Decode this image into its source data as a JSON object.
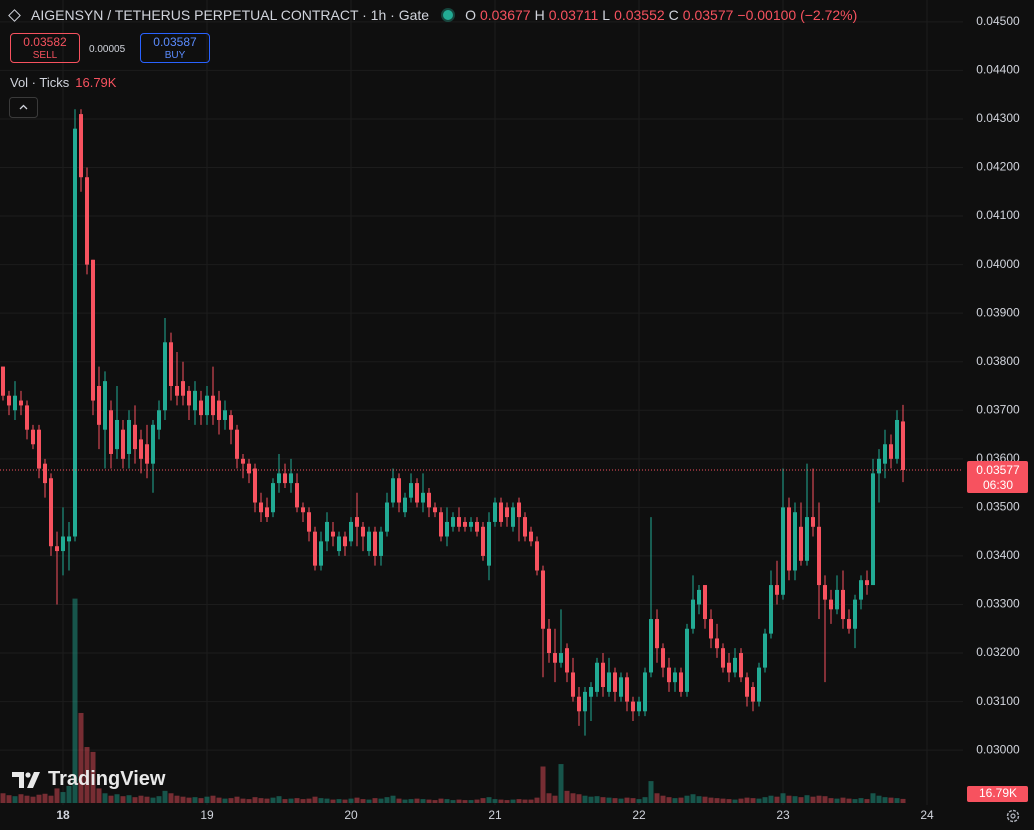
{
  "chart_data": {
    "type": "candlestick",
    "title": "AIGENSYN / TETHERUS PERPETUAL CONTRACT · 1h · Gate",
    "labels": {
      "open": "O",
      "high": "H",
      "low": "L",
      "close": "C"
    },
    "change": "−0.00100 (−2.72%)",
    "countdown": "06:30",
    "up_color": "#22ab94",
    "down_color": "#f7525f",
    "grid": true,
    "categories": [
      null,
      null,
      null,
      null,
      null,
      null,
      null,
      null,
      null,
      null,
      "18",
      null,
      null,
      null,
      null,
      null,
      null,
      null,
      null,
      null,
      null,
      null,
      null,
      null,
      null,
      null,
      null,
      null,
      null,
      null,
      null,
      null,
      null,
      null,
      "19",
      null,
      null,
      null,
      null,
      null,
      null,
      null,
      null,
      null,
      null,
      null,
      null,
      null,
      null,
      null,
      null,
      null,
      null,
      null,
      null,
      null,
      null,
      null,
      "20",
      null,
      null,
      null,
      null,
      null,
      null,
      null,
      null,
      null,
      null,
      null,
      null,
      null,
      null,
      null,
      null,
      null,
      null,
      null,
      null,
      null,
      null,
      null,
      "21",
      null,
      null,
      null,
      null,
      null,
      null,
      null,
      null,
      null,
      null,
      null,
      null,
      null,
      null,
      null,
      null,
      null,
      null,
      null,
      null,
      null,
      null,
      null,
      "22",
      null,
      null,
      null,
      null,
      null,
      null,
      null,
      null,
      null,
      null,
      null,
      null,
      null,
      null,
      null,
      null,
      null,
      null,
      null,
      null,
      null,
      null,
      null,
      "23",
      null,
      null,
      null,
      null,
      null,
      null,
      null,
      null,
      null,
      null,
      null,
      null,
      null,
      null,
      null,
      null,
      null,
      null,
      null,
      null,
      null,
      null,
      null,
      "24"
    ],
    "open": [
      0.0379,
      0.0373,
      0.037,
      0.0372,
      0.0371,
      0.0366,
      0.0366,
      0.0359,
      0.0356,
      0.0342,
      0.0341,
      0.0343,
      0.0344,
      0.0431,
      0.0418,
      0.0401,
      0.0375,
      0.0366,
      0.037,
      0.0362,
      0.0366,
      0.0361,
      0.0367,
      0.0364,
      0.0363,
      0.0359,
      0.0366,
      0.037,
      0.0384,
      0.0375,
      0.0376,
      0.0374,
      0.037,
      0.0372,
      0.0369,
      0.0373,
      0.0372,
      0.0368,
      0.0369,
      0.0366,
      0.036,
      0.0359,
      0.0358,
      0.0351,
      0.035,
      0.0349,
      0.0355,
      0.0357,
      0.0355,
      0.0355,
      0.035,
      0.0349,
      0.0345,
      0.0338,
      0.0343,
      0.0345,
      0.0341,
      0.0344,
      0.0343,
      0.0348,
      0.0346,
      0.0341,
      0.0345,
      0.034,
      0.0345,
      0.0351,
      0.0356,
      0.0349,
      0.0352,
      0.0355,
      0.0351,
      0.0353,
      0.035,
      0.0349,
      0.0344,
      0.0346,
      0.0348,
      0.0347,
      0.0346,
      0.0347,
      0.0346,
      0.0338,
      0.0347,
      0.0351,
      0.035,
      0.0346,
      0.0351,
      0.0348,
      0.0345,
      0.0343,
      0.0337,
      0.0325,
      0.032,
      0.0318,
      0.0321,
      0.0316,
      0.0311,
      0.0308,
      0.0311,
      0.0312,
      0.0318,
      0.0312,
      0.0316,
      0.0311,
      0.0315,
      0.031,
      0.0308,
      0.0308,
      0.0316,
      0.0327,
      0.0321,
      0.0317,
      0.0314,
      0.0316,
      0.0312,
      0.0325,
      0.033,
      0.0334,
      0.0327,
      0.0323,
      0.0321,
      0.0318,
      0.0316,
      0.032,
      0.0315,
      0.0313,
      0.031,
      0.0317,
      0.0324,
      0.0334,
      0.0332,
      0.035,
      0.0337,
      0.0346,
      0.0339,
      0.0348,
      0.0346,
      0.0334,
      0.0331,
      0.0329,
      0.0333,
      0.0327,
      0.0325,
      0.0331,
      0.0335,
      0.0334,
      0.0357,
      0.0359,
      0.0363,
      0.036,
      0.03677,
      null,
      null,
      null,
      null
    ],
    "high": [
      0.0379,
      0.0374,
      0.0376,
      0.0374,
      0.0372,
      0.0367,
      0.0367,
      0.036,
      0.0357,
      0.0345,
      0.035,
      0.0347,
      0.0432,
      0.0432,
      0.042,
      0.0401,
      0.0379,
      0.0378,
      0.0372,
      0.0375,
      0.0368,
      0.037,
      0.0371,
      0.0366,
      0.0367,
      0.0368,
      0.0372,
      0.0389,
      0.0386,
      0.0382,
      0.038,
      0.0375,
      0.0376,
      0.0374,
      0.0375,
      0.0379,
      0.0374,
      0.0372,
      0.037,
      0.0367,
      0.0361,
      0.036,
      0.0359,
      0.0353,
      0.0352,
      0.0356,
      0.0361,
      0.0359,
      0.036,
      0.0357,
      0.0351,
      0.035,
      0.0346,
      0.0345,
      0.0349,
      0.0347,
      0.0345,
      0.0345,
      0.0348,
      0.0353,
      0.0347,
      0.0346,
      0.0346,
      0.0346,
      0.0353,
      0.0358,
      0.0357,
      0.0353,
      0.0357,
      0.0356,
      0.0357,
      0.0354,
      0.0351,
      0.035,
      0.035,
      0.0349,
      0.035,
      0.0348,
      0.0348,
      0.0348,
      0.0347,
      0.0349,
      0.0352,
      0.0352,
      0.0351,
      0.0351,
      0.0352,
      0.0349,
      0.0346,
      0.0344,
      0.0338,
      0.0327,
      0.0325,
      0.0329,
      0.0322,
      0.0319,
      0.0313,
      0.0313,
      0.0314,
      0.0319,
      0.032,
      0.0319,
      0.0317,
      0.0316,
      0.0316,
      0.0311,
      0.0311,
      0.0317,
      0.0348,
      0.0329,
      0.0322,
      0.0319,
      0.0317,
      0.0317,
      0.0326,
      0.0336,
      0.0334,
      0.0334,
      0.0329,
      0.0326,
      0.0322,
      0.032,
      0.0321,
      0.0321,
      0.0316,
      0.0314,
      0.0318,
      0.0325,
      0.0337,
      0.0339,
      0.0358,
      0.0352,
      0.0351,
      0.0351,
      0.0359,
      0.0358,
      0.0351,
      0.0336,
      0.0333,
      0.0336,
      0.0337,
      0.0329,
      0.0332,
      0.0336,
      0.0337,
      0.036,
      0.0362,
      0.0366,
      0.0365,
      0.037,
      0.03711,
      null,
      null,
      null,
      null
    ],
    "low": [
      0.0372,
      0.0369,
      0.0368,
      0.0369,
      0.0364,
      0.0362,
      0.0356,
      0.0352,
      0.034,
      0.033,
      0.0336,
      0.0337,
      0.0343,
      0.0415,
      0.0398,
      0.0369,
      0.0362,
      0.0358,
      0.0358,
      0.036,
      0.0358,
      0.0358,
      0.0359,
      0.0357,
      0.0356,
      0.0353,
      0.0364,
      0.0368,
      0.0372,
      0.0371,
      0.0371,
      0.0368,
      0.0367,
      0.0367,
      0.0367,
      0.0367,
      0.0365,
      0.0366,
      0.0363,
      0.0358,
      0.0356,
      0.0355,
      0.0349,
      0.0347,
      0.0347,
      0.0348,
      0.0353,
      0.0354,
      0.0353,
      0.0349,
      0.0347,
      0.0343,
      0.0337,
      0.0337,
      0.0341,
      0.0342,
      0.034,
      0.034,
      0.0342,
      0.0342,
      0.0341,
      0.034,
      0.0338,
      0.0338,
      0.0344,
      0.035,
      0.0349,
      0.0348,
      0.0351,
      0.035,
      0.0349,
      0.0348,
      0.0348,
      0.0343,
      0.0342,
      0.0345,
      0.0345,
      0.0345,
      0.0345,
      0.0344,
      0.0339,
      0.0335,
      0.0346,
      0.0346,
      0.0346,
      0.0345,
      0.0343,
      0.0343,
      0.0342,
      0.0336,
      0.0315,
      0.0318,
      0.0314,
      0.0317,
      0.0314,
      0.031,
      0.0305,
      0.0303,
      0.0306,
      0.0311,
      0.0311,
      0.0311,
      0.031,
      0.031,
      0.0308,
      0.0306,
      0.0307,
      0.0307,
      0.0315,
      0.0318,
      0.0315,
      0.0312,
      0.0312,
      0.0311,
      0.0311,
      0.0324,
      0.0328,
      0.0325,
      0.0321,
      0.0319,
      0.0316,
      0.0314,
      0.0315,
      0.0314,
      0.0309,
      0.0308,
      0.0309,
      0.0316,
      0.0323,
      0.033,
      0.0331,
      0.0335,
      0.0335,
      0.0338,
      0.0338,
      0.0344,
      0.0327,
      0.0314,
      0.0326,
      0.0328,
      0.0325,
      0.0324,
      0.0321,
      0.0329,
      0.0332,
      0.0334,
      0.0351,
      0.0356,
      0.0358,
      0.0359,
      0.03552,
      null,
      null,
      null,
      null
    ],
    "close": [
      0.0373,
      0.0371,
      0.0373,
      0.0371,
      0.0366,
      0.0363,
      0.0358,
      0.0355,
      0.0342,
      0.0341,
      0.0344,
      0.0344,
      0.0428,
      0.0418,
      0.04,
      0.0372,
      0.0367,
      0.0376,
      0.0361,
      0.0368,
      0.036,
      0.0368,
      0.0362,
      0.036,
      0.0359,
      0.0367,
      0.037,
      0.0384,
      0.0375,
      0.0373,
      0.0373,
      0.0371,
      0.0374,
      0.0369,
      0.0373,
      0.0369,
      0.0368,
      0.037,
      0.0366,
      0.036,
      0.0359,
      0.0357,
      0.0351,
      0.0349,
      0.0348,
      0.0355,
      0.0357,
      0.0355,
      0.0357,
      0.035,
      0.0349,
      0.0345,
      0.0338,
      0.0343,
      0.0347,
      0.0344,
      0.0344,
      0.0342,
      0.0347,
      0.0346,
      0.0344,
      0.0345,
      0.034,
      0.0345,
      0.0351,
      0.0356,
      0.0351,
      0.0352,
      0.0355,
      0.0351,
      0.0353,
      0.035,
      0.0349,
      0.0344,
      0.0347,
      0.0348,
      0.0346,
      0.0346,
      0.0347,
      0.0345,
      0.034,
      0.0347,
      0.0351,
      0.0347,
      0.0348,
      0.035,
      0.0348,
      0.0344,
      0.0343,
      0.0337,
      0.0325,
      0.032,
      0.0318,
      0.032,
      0.0316,
      0.0311,
      0.0308,
      0.0312,
      0.0313,
      0.0318,
      0.0313,
      0.0316,
      0.0312,
      0.0315,
      0.031,
      0.0308,
      0.031,
      0.0316,
      0.0327,
      0.0321,
      0.0317,
      0.0314,
      0.0316,
      0.0312,
      0.0325,
      0.0331,
      0.0333,
      0.0327,
      0.0323,
      0.0321,
      0.0317,
      0.0316,
      0.0319,
      0.0315,
      0.0311,
      0.031,
      0.0317,
      0.0324,
      0.0334,
      0.0332,
      0.035,
      0.0337,
      0.0349,
      0.0339,
      0.0348,
      0.0346,
      0.0334,
      0.0331,
      0.0329,
      0.0333,
      0.0327,
      0.0325,
      0.0331,
      0.0335,
      0.0334,
      0.0357,
      0.036,
      0.0363,
      0.036,
      0.0368,
      0.03577,
      null,
      null,
      null,
      null
    ],
    "volume": {
      "name": "Vol · Ticks",
      "last_value_label": "16.79K",
      "ylim": [
        0,
        3300000
      ],
      "values": [
        40000,
        32000,
        28000,
        36000,
        30000,
        26000,
        34000,
        38000,
        30000,
        60000,
        45000,
        70000,
        840000,
        370000,
        230000,
        210000,
        60000,
        40000,
        30000,
        36000,
        28000,
        32000,
        24000,
        30000,
        26000,
        22000,
        28000,
        50000,
        40000,
        30000,
        26000,
        22000,
        24000,
        20000,
        26000,
        30000,
        22000,
        18000,
        20000,
        26000,
        18000,
        16000,
        24000,
        20000,
        18000,
        22000,
        28000,
        16000,
        18000,
        20000,
        16000,
        18000,
        26000,
        20000,
        18000,
        14000,
        16000,
        14000,
        18000,
        22000,
        16000,
        14000,
        20000,
        18000,
        24000,
        30000,
        18000,
        14000,
        16000,
        18000,
        16000,
        14000,
        12000,
        18000,
        16000,
        12000,
        14000,
        12000,
        12000,
        14000,
        20000,
        24000,
        16000,
        14000,
        12000,
        14000,
        16000,
        14000,
        14000,
        22000,
        150000,
        40000,
        30000,
        160000,
        50000,
        40000,
        36000,
        30000,
        26000,
        28000,
        24000,
        22000,
        20000,
        18000,
        22000,
        20000,
        16000,
        24000,
        90000,
        40000,
        30000,
        24000,
        20000,
        22000,
        30000,
        36000,
        28000,
        26000,
        22000,
        20000,
        18000,
        16000,
        14000,
        18000,
        22000,
        20000,
        18000,
        24000,
        30000,
        26000,
        40000,
        30000,
        28000,
        24000,
        32000,
        26000,
        30000,
        28000,
        20000,
        18000,
        22000,
        18000,
        16000,
        20000,
        16000,
        40000,
        30000,
        24000,
        22000,
        20000,
        16790,
        null,
        null,
        null,
        null
      ]
    },
    "ylim": [
      0.02887,
      0.04545
    ],
    "yticks": [
      {
        "value": 0.03,
        "label": "0.03000"
      },
      {
        "value": 0.031,
        "label": "0.03100"
      },
      {
        "value": 0.032,
        "label": "0.03200"
      },
      {
        "value": 0.033,
        "label": "0.03300"
      },
      {
        "value": 0.034,
        "label": "0.03400"
      },
      {
        "value": 0.035,
        "label": "0.03500"
      },
      {
        "value": 0.036,
        "label": "0.03600"
      },
      {
        "value": 0.037,
        "label": "0.03700"
      },
      {
        "value": 0.038,
        "label": "0.03800"
      },
      {
        "value": 0.039,
        "label": "0.03900"
      },
      {
        "value": 0.04,
        "label": "0.04000"
      },
      {
        "value": 0.041,
        "label": "0.04100"
      },
      {
        "value": 0.042,
        "label": "0.04200"
      },
      {
        "value": 0.043,
        "label": "0.04300"
      },
      {
        "value": 0.044,
        "label": "0.04400"
      },
      {
        "value": 0.045,
        "label": "0.04500"
      }
    ]
  },
  "trade": {
    "sell_price": "0.03582",
    "sell": "SELL",
    "spread": "0.00005",
    "buy_price": "0.03587",
    "buy": "BUY"
  },
  "branding": {
    "logo": "TradingView"
  }
}
